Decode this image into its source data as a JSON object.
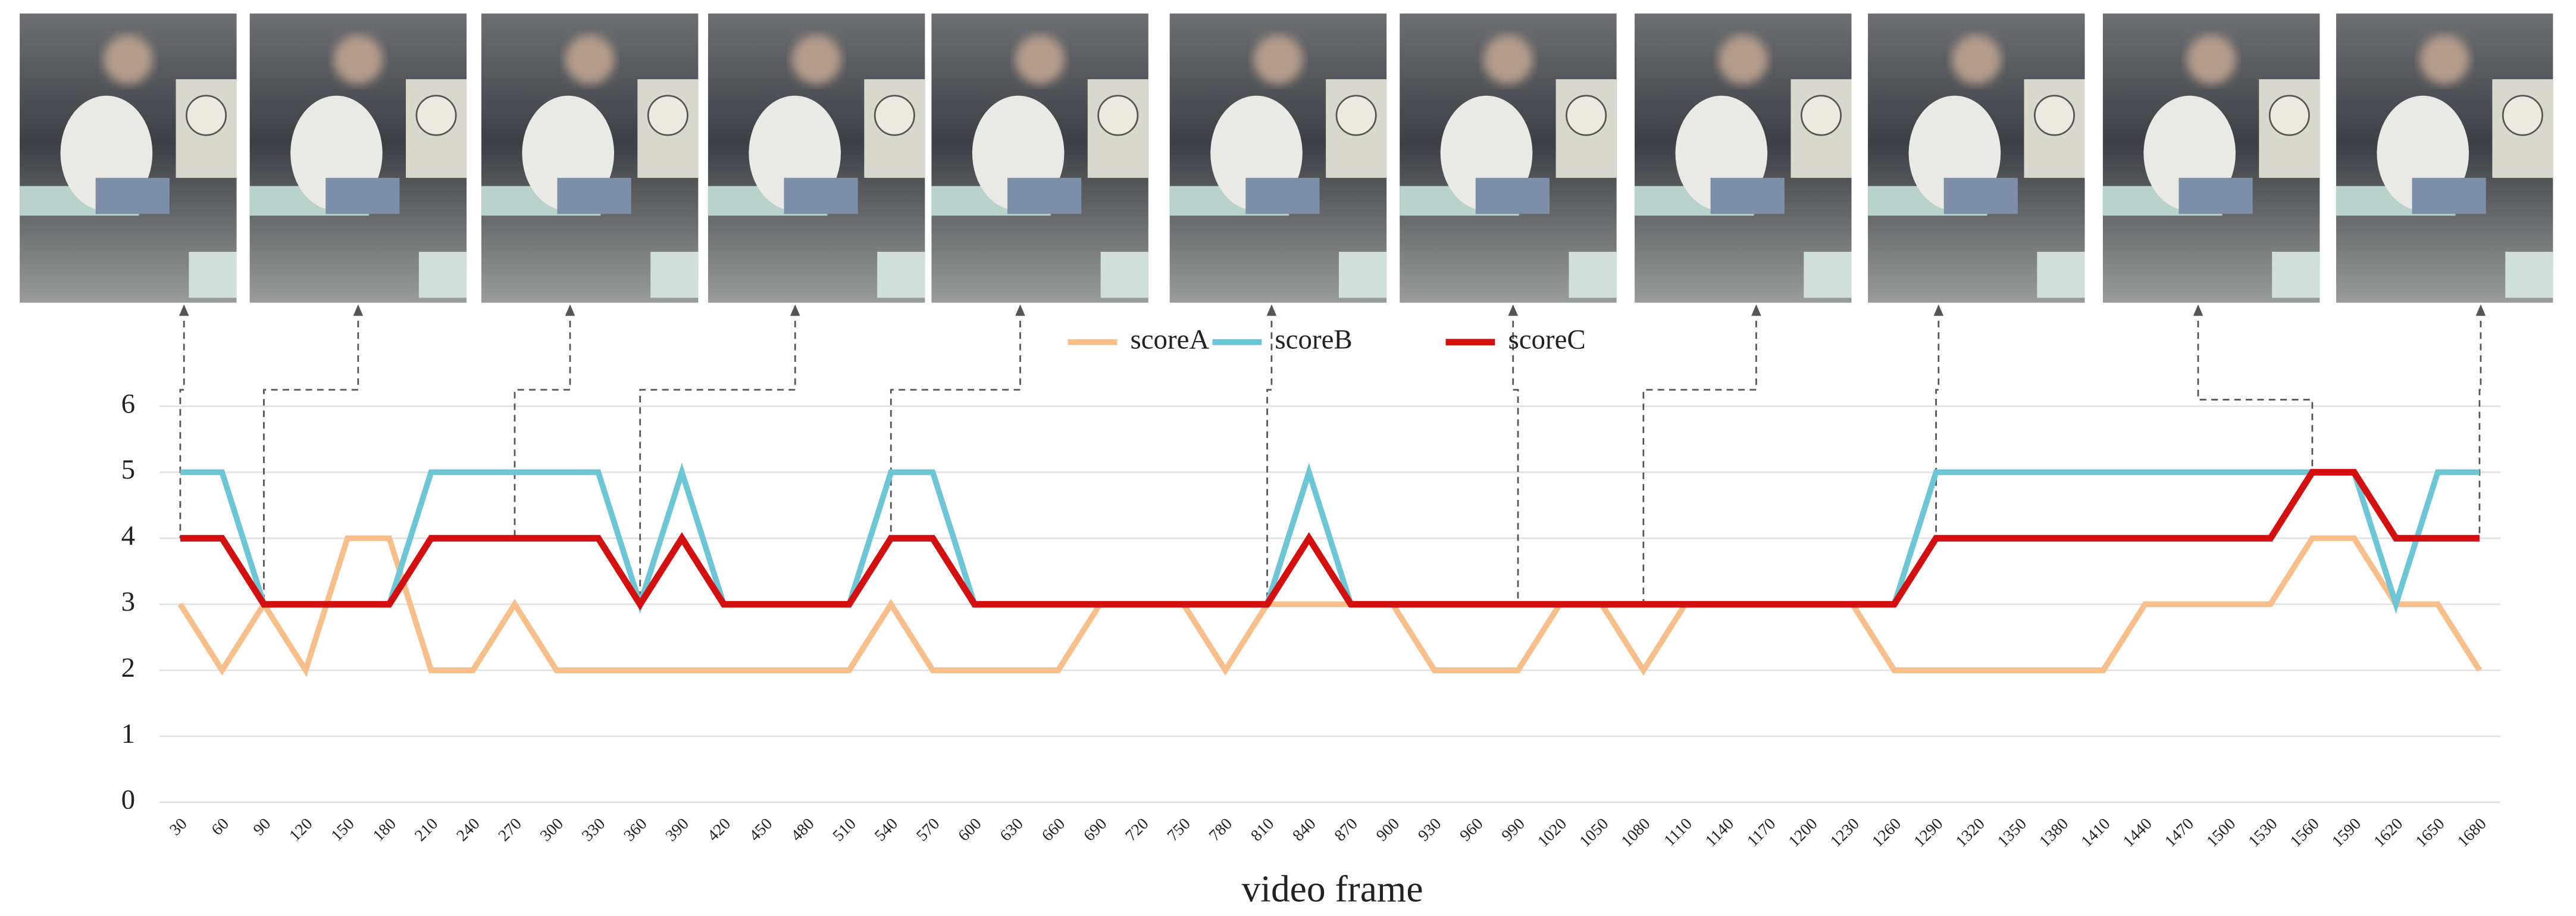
{
  "chart_data": {
    "type": "line",
    "x_label": "video frame",
    "categories": [
      30,
      60,
      90,
      120,
      150,
      180,
      210,
      240,
      270,
      300,
      330,
      360,
      390,
      420,
      450,
      480,
      510,
      540,
      570,
      600,
      630,
      660,
      690,
      720,
      750,
      780,
      810,
      840,
      870,
      900,
      930,
      960,
      990,
      1020,
      1050,
      1080,
      1110,
      1140,
      1170,
      1200,
      1230,
      1260,
      1290,
      1320,
      1350,
      1380,
      1410,
      1440,
      1470,
      1500,
      1530,
      1560,
      1590,
      1620,
      1650,
      1680
    ],
    "series": [
      {
        "name": "scoreA",
        "color": "#f9bf8a",
        "values": [
          3,
          2,
          3,
          2,
          4,
          4,
          2,
          2,
          3,
          2,
          2,
          2,
          2,
          2,
          2,
          2,
          2,
          3,
          2,
          2,
          2,
          2,
          3,
          3,
          3,
          2,
          3,
          3,
          3,
          3,
          2,
          2,
          2,
          3,
          3,
          2,
          3,
          3,
          3,
          3,
          3,
          2,
          2,
          2,
          2,
          2,
          2,
          3,
          3,
          3,
          3,
          4,
          4,
          3,
          3,
          2
        ]
      },
      {
        "name": "scoreB",
        "color": "#6cc6d6",
        "values": [
          5,
          5,
          3,
          3,
          3,
          3,
          5,
          5,
          5,
          5,
          5,
          3,
          5,
          3,
          3,
          3,
          3,
          5,
          5,
          3,
          3,
          3,
          3,
          3,
          3,
          3,
          3,
          5,
          3,
          3,
          3,
          3,
          3,
          3,
          3,
          3,
          3,
          3,
          3,
          3,
          3,
          3,
          5,
          5,
          5,
          5,
          5,
          5,
          5,
          5,
          5,
          5,
          5,
          3,
          5,
          5
        ]
      },
      {
        "name": "scoreC",
        "color": "#d40f0f",
        "values": [
          4,
          4,
          3,
          3,
          3,
          3,
          4,
          4,
          4,
          4,
          4,
          3,
          4,
          3,
          3,
          3,
          3,
          4,
          4,
          3,
          3,
          3,
          3,
          3,
          3,
          3,
          3,
          4,
          3,
          3,
          3,
          3,
          3,
          3,
          3,
          3,
          3,
          3,
          3,
          3,
          3,
          3,
          4,
          4,
          4,
          4,
          4,
          4,
          4,
          4,
          4,
          5,
          5,
          4,
          4,
          4
        ]
      }
    ],
    "photo_frames": [
      30,
      90,
      270,
      360,
      540,
      810,
      990,
      1080,
      1290,
      1560,
      1680
    ],
    "ylim": [
      0,
      6
    ],
    "yticks": [
      0,
      1,
      2,
      3,
      4,
      5,
      6
    ],
    "grid": true
  }
}
